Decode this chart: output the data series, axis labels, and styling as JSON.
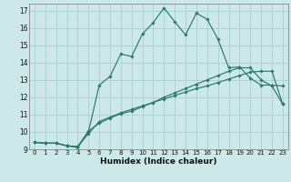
{
  "xlabel": "Humidex (Indice chaleur)",
  "ylabel": "",
  "bg_color": "#cce8e8",
  "line_color": "#2a7a6a",
  "grid_color": "#aacfcf",
  "xlim": [
    -0.5,
    23.5
  ],
  "ylim": [
    9,
    17.4
  ],
  "xticks": [
    0,
    1,
    2,
    3,
    4,
    5,
    6,
    7,
    8,
    9,
    10,
    11,
    12,
    13,
    14,
    15,
    16,
    17,
    18,
    19,
    20,
    21,
    22,
    23
  ],
  "yticks": [
    9,
    10,
    11,
    12,
    13,
    14,
    15,
    16,
    17
  ],
  "line1_x": [
    0,
    1,
    2,
    3,
    4,
    5,
    6,
    7,
    8,
    9,
    10,
    11,
    12,
    13,
    14,
    15,
    16,
    17,
    18,
    19,
    20,
    21,
    22,
    23
  ],
  "line1_y": [
    9.4,
    9.35,
    9.35,
    9.2,
    9.15,
    9.9,
    10.6,
    10.85,
    11.1,
    11.3,
    11.5,
    11.7,
    11.9,
    12.1,
    12.3,
    12.5,
    12.65,
    12.85,
    13.05,
    13.25,
    13.45,
    13.5,
    13.5,
    11.6
  ],
  "line2_x": [
    0,
    1,
    2,
    3,
    4,
    5,
    6,
    7,
    8,
    9,
    10,
    11,
    12,
    13,
    14,
    15,
    16,
    17,
    18,
    19,
    20,
    21,
    22,
    23
  ],
  "line2_y": [
    9.4,
    9.35,
    9.35,
    9.2,
    9.15,
    10.05,
    10.5,
    10.8,
    11.05,
    11.2,
    11.45,
    11.7,
    12.0,
    12.25,
    12.5,
    12.75,
    13.0,
    13.25,
    13.5,
    13.7,
    13.7,
    13.0,
    12.65,
    11.6
  ],
  "line3_x": [
    0,
    1,
    2,
    3,
    4,
    5,
    6,
    7,
    8,
    9,
    10,
    11,
    12,
    13,
    14,
    15,
    16,
    17,
    18,
    19,
    20,
    21,
    22,
    23
  ],
  "line3_y": [
    9.4,
    9.35,
    9.35,
    9.2,
    9.1,
    10.0,
    12.7,
    13.2,
    14.5,
    14.35,
    15.65,
    16.3,
    17.15,
    16.35,
    15.6,
    16.85,
    16.5,
    15.35,
    13.7,
    13.75,
    13.1,
    12.7,
    12.7,
    12.65
  ]
}
